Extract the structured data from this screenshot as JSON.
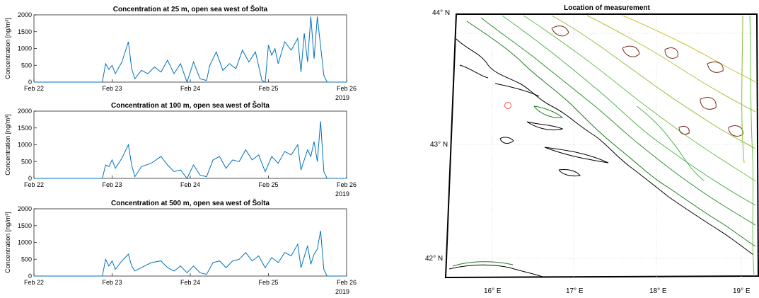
{
  "chart_data": [
    {
      "type": "line",
      "title": "Concentration at 25 m, open sea west of Šolta",
      "ylabel": "Concentration [ng/m³]",
      "xlabel": "",
      "x_ticks": [
        "Feb 22",
        "Feb 23",
        "Feb 24",
        "Feb 25",
        "Feb 26"
      ],
      "x_year_label": "2019",
      "y_ticks": [
        0,
        500,
        1000,
        1500,
        2000
      ],
      "ylim": [
        0,
        2000
      ],
      "xlim_days": [
        "2019-02-22",
        "2019-02-26"
      ],
      "series_color": "#0072BD",
      "points": [
        [
          "2019-02-22 00:00",
          0
        ],
        [
          "2019-02-22 21:00",
          0
        ],
        [
          "2019-02-22 22:00",
          550
        ],
        [
          "2019-02-22 23:00",
          380
        ],
        [
          "2019-02-23 00:00",
          500
        ],
        [
          "2019-02-23 01:00",
          250
        ],
        [
          "2019-02-23 03:00",
          600
        ],
        [
          "2019-02-23 05:00",
          1200
        ],
        [
          "2019-02-23 06:00",
          400
        ],
        [
          "2019-02-23 07:00",
          100
        ],
        [
          "2019-02-23 09:00",
          350
        ],
        [
          "2019-02-23 11:00",
          250
        ],
        [
          "2019-02-23 13:00",
          450
        ],
        [
          "2019-02-23 15:00",
          300
        ],
        [
          "2019-02-23 17:00",
          650
        ],
        [
          "2019-02-23 19:00",
          250
        ],
        [
          "2019-02-23 21:00",
          550
        ],
        [
          "2019-02-23 23:00",
          0
        ],
        [
          "2019-02-24 01:00",
          600
        ],
        [
          "2019-02-24 03:00",
          100
        ],
        [
          "2019-02-24 05:00",
          50
        ],
        [
          "2019-02-24 06:00",
          500
        ],
        [
          "2019-02-24 08:00",
          900
        ],
        [
          "2019-02-24 10:00",
          350
        ],
        [
          "2019-02-24 12:00",
          550
        ],
        [
          "2019-02-24 14:00",
          400
        ],
        [
          "2019-02-24 16:00",
          950
        ],
        [
          "2019-02-24 18:00",
          600
        ],
        [
          "2019-02-24 20:00",
          900
        ],
        [
          "2019-02-24 22:00",
          50
        ],
        [
          "2019-02-25 00:00",
          1100
        ],
        [
          "2019-02-24 23:00",
          0
        ],
        [
          "2019-02-25 01:00",
          800
        ],
        [
          "2019-02-25 02:00",
          1000
        ],
        [
          "2019-02-25 03:00",
          550
        ],
        [
          "2019-02-25 05:00",
          1200
        ],
        [
          "2019-02-25 07:00",
          950
        ],
        [
          "2019-02-25 09:00",
          1300
        ],
        [
          "2019-02-25 10:00",
          300
        ],
        [
          "2019-02-25 11:00",
          1450
        ],
        [
          "2019-02-25 12:00",
          600
        ],
        [
          "2019-02-25 13:00",
          1950
        ],
        [
          "2019-02-25 14:00",
          700
        ],
        [
          "2019-02-25 15:00",
          1950
        ],
        [
          "2019-02-25 17:00",
          200
        ],
        [
          "2019-02-25 18:00",
          0
        ],
        [
          "2019-02-26 00:00",
          0
        ]
      ]
    },
    {
      "type": "line",
      "title": "Concentration at 100 m, open sea west of Šolta",
      "ylabel": "Concentration [ng/m³]",
      "xlabel": "",
      "x_ticks": [
        "Feb 22",
        "Feb 23",
        "Feb 24",
        "Feb 25",
        "Feb 26"
      ],
      "x_year_label": "2019",
      "y_ticks": [
        0,
        500,
        1000,
        1500,
        2000
      ],
      "ylim": [
        0,
        2000
      ],
      "xlim_days": [
        "2019-02-22",
        "2019-02-26"
      ],
      "series_color": "#0072BD",
      "points": [
        [
          "2019-02-22 00:00",
          0
        ],
        [
          "2019-02-22 21:00",
          0
        ],
        [
          "2019-02-22 22:00",
          400
        ],
        [
          "2019-02-22 23:00",
          350
        ],
        [
          "2019-02-23 00:00",
          550
        ],
        [
          "2019-02-23 01:00",
          300
        ],
        [
          "2019-02-23 03:00",
          600
        ],
        [
          "2019-02-23 05:00",
          1000
        ],
        [
          "2019-02-23 06:00",
          400
        ],
        [
          "2019-02-23 07:00",
          50
        ],
        [
          "2019-02-23 09:00",
          350
        ],
        [
          "2019-02-23 12:00",
          450
        ],
        [
          "2019-02-23 15:00",
          650
        ],
        [
          "2019-02-23 17:00",
          400
        ],
        [
          "2019-02-23 19:00",
          200
        ],
        [
          "2019-02-23 21:00",
          250
        ],
        [
          "2019-02-23 23:00",
          0
        ],
        [
          "2019-02-24 01:00",
          400
        ],
        [
          "2019-02-24 03:00",
          100
        ],
        [
          "2019-02-24 05:00",
          50
        ],
        [
          "2019-02-24 07:00",
          550
        ],
        [
          "2019-02-24 09:00",
          650
        ],
        [
          "2019-02-24 11:00",
          300
        ],
        [
          "2019-02-24 13:00",
          550
        ],
        [
          "2019-02-24 15:00",
          500
        ],
        [
          "2019-02-24 17:00",
          850
        ],
        [
          "2019-02-24 19:00",
          550
        ],
        [
          "2019-02-24 21:00",
          700
        ],
        [
          "2019-02-24 23:00",
          200
        ],
        [
          "2019-02-25 01:00",
          650
        ],
        [
          "2019-02-25 03:00",
          450
        ],
        [
          "2019-02-25 05:00",
          800
        ],
        [
          "2019-02-25 07:00",
          700
        ],
        [
          "2019-02-25 09:00",
          1000
        ],
        [
          "2019-02-25 10:00",
          250
        ],
        [
          "2019-02-25 12:00",
          850
        ],
        [
          "2019-02-25 13:00",
          650
        ],
        [
          "2019-02-25 14:00",
          1100
        ],
        [
          "2019-02-25 15:00",
          500
        ],
        [
          "2019-02-25 16:00",
          1700
        ],
        [
          "2019-02-25 17:00",
          200
        ],
        [
          "2019-02-25 18:00",
          0
        ],
        [
          "2019-02-26 00:00",
          0
        ]
      ]
    },
    {
      "type": "line",
      "title": "Concentration at 500 m, open sea west of Šolta",
      "ylabel": "Concentration [ng/m³]",
      "xlabel": "",
      "x_ticks": [
        "Feb 22",
        "Feb 23",
        "Feb 24",
        "Feb 25",
        "Feb 26"
      ],
      "x_year_label": "2019",
      "y_ticks": [
        0,
        500,
        1000,
        1500,
        2000
      ],
      "ylim": [
        0,
        2000
      ],
      "xlim_days": [
        "2019-02-22",
        "2019-02-26"
      ],
      "series_color": "#0072BD",
      "points": [
        [
          "2019-02-22 00:00",
          0
        ],
        [
          "2019-02-22 21:00",
          0
        ],
        [
          "2019-02-22 22:00",
          500
        ],
        [
          "2019-02-22 23:00",
          300
        ],
        [
          "2019-02-23 00:00",
          450
        ],
        [
          "2019-02-23 01:00",
          200
        ],
        [
          "2019-02-23 03:00",
          450
        ],
        [
          "2019-02-23 05:00",
          650
        ],
        [
          "2019-02-23 06:00",
          300
        ],
        [
          "2019-02-23 07:00",
          150
        ],
        [
          "2019-02-23 09:00",
          250
        ],
        [
          "2019-02-23 12:00",
          400
        ],
        [
          "2019-02-23 15:00",
          450
        ],
        [
          "2019-02-23 17:00",
          250
        ],
        [
          "2019-02-23 19:00",
          150
        ],
        [
          "2019-02-23 21:00",
          300
        ],
        [
          "2019-02-23 23:00",
          100
        ],
        [
          "2019-02-24 01:00",
          300
        ],
        [
          "2019-02-24 03:00",
          100
        ],
        [
          "2019-02-24 05:00",
          50
        ],
        [
          "2019-02-24 07:00",
          400
        ],
        [
          "2019-02-24 09:00",
          450
        ],
        [
          "2019-02-24 11:00",
          250
        ],
        [
          "2019-02-24 13:00",
          450
        ],
        [
          "2019-02-24 15:00",
          500
        ],
        [
          "2019-02-24 17:00",
          700
        ],
        [
          "2019-02-24 19:00",
          450
        ],
        [
          "2019-02-24 21:00",
          600
        ],
        [
          "2019-02-24 23:00",
          250
        ],
        [
          "2019-02-25 01:00",
          550
        ],
        [
          "2019-02-25 03:00",
          400
        ],
        [
          "2019-02-25 05:00",
          700
        ],
        [
          "2019-02-25 07:00",
          600
        ],
        [
          "2019-02-25 09:00",
          950
        ],
        [
          "2019-02-25 10:00",
          250
        ],
        [
          "2019-02-25 12:00",
          900
        ],
        [
          "2019-02-25 13:00",
          350
        ],
        [
          "2019-02-25 14:00",
          650
        ],
        [
          "2019-02-25 15:00",
          800
        ],
        [
          "2019-02-25 16:00",
          1350
        ],
        [
          "2019-02-25 17:00",
          200
        ],
        [
          "2019-02-25 18:00",
          0
        ],
        [
          "2019-02-26 00:00",
          0
        ]
      ]
    }
  ],
  "map": {
    "title": "Location of measurement",
    "lat_labels": [
      "44° N",
      "43° N",
      "42° N"
    ],
    "lon_labels": [
      "16° E",
      "17° E",
      "18° E",
      "19° E"
    ],
    "contour_colors": [
      "#000000",
      "#1f7a1f",
      "#3aa33a",
      "#8fbf3f",
      "#c9c23a",
      "#9a8a2a",
      "#7a2a1a"
    ],
    "marker_color": "#ff4d4d",
    "marker_description": "measurement location circle"
  }
}
